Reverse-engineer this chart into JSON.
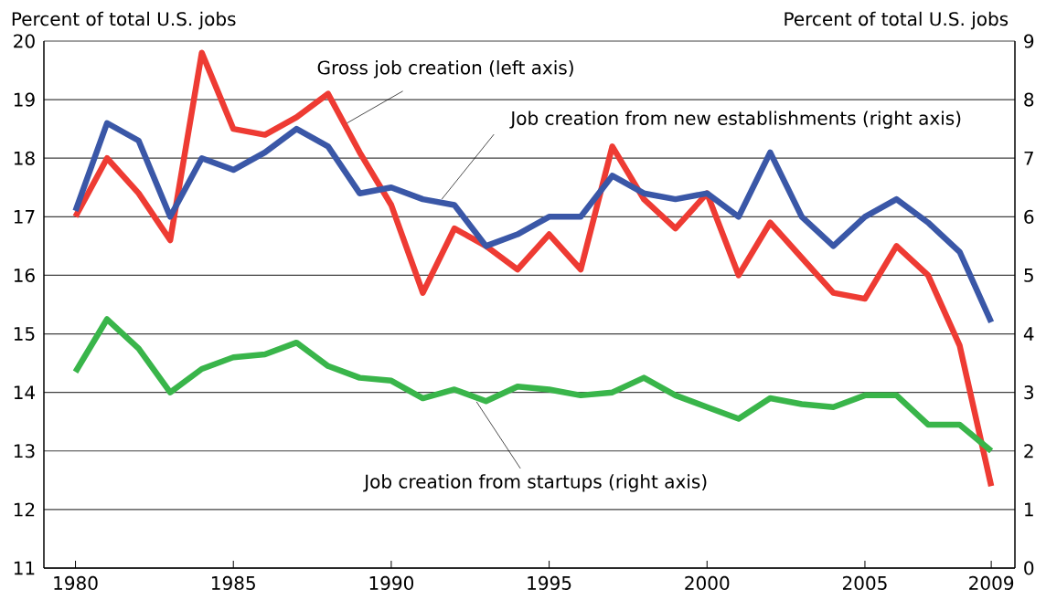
{
  "chart_data": {
    "type": "line",
    "ylabel": "Percent of total U.S. jobs",
    "y2label": "Percent of total U.S. jobs",
    "x": [
      1980,
      1981,
      1982,
      1983,
      1984,
      1985,
      1986,
      1987,
      1988,
      1989,
      1990,
      1991,
      1992,
      1993,
      1994,
      1995,
      1996,
      1997,
      1998,
      1999,
      2000,
      2001,
      2002,
      2003,
      2004,
      2005,
      2006,
      2007,
      2008,
      2009
    ],
    "series": [
      {
        "color": "#ee3b33",
        "values": [
          17.0,
          18.0,
          17.4,
          16.6,
          19.8,
          18.5,
          18.4,
          18.7,
          19.1,
          18.1,
          17.2,
          15.7,
          16.8,
          16.5,
          16.1,
          16.7,
          16.1,
          18.2,
          17.3,
          16.8,
          17.4,
          16.0,
          16.9,
          16.3,
          15.7,
          15.6,
          16.5,
          16.0,
          14.8,
          12.4
        ]
      },
      {
        "color": "#3a57a7",
        "axis": "y2",
        "values": [
          6.1,
          7.6,
          7.3,
          6.0,
          7.0,
          6.8,
          7.1,
          7.5,
          7.2,
          6.4,
          6.5,
          6.3,
          6.2,
          5.5,
          5.7,
          6.0,
          6.0,
          6.7,
          6.4,
          6.3,
          6.4,
          6.0,
          7.1,
          6.0,
          5.5,
          6.0,
          6.3,
          5.9,
          5.4,
          4.2
        ]
      },
      {
        "color": "#39b54a",
        "axis": "y2",
        "values": [
          3.35,
          4.25,
          3.75,
          3.0,
          3.4,
          3.6,
          3.65,
          3.85,
          3.45,
          3.25,
          3.2,
          2.9,
          3.05,
          2.85,
          3.1,
          3.05,
          2.95,
          3.0,
          3.25,
          2.95,
          2.75,
          2.55,
          2.9,
          2.8,
          2.75,
          2.95,
          2.95,
          2.45,
          2.45,
          2.0
        ]
      }
    ],
    "xlim": [
      1979,
      2009.75
    ],
    "xticks": [
      1980,
      1985,
      1990,
      1995,
      2000,
      2005,
      2009
    ],
    "ylim": [
      11,
      20
    ],
    "yticks": [
      11,
      12,
      13,
      14,
      15,
      16,
      17,
      18,
      19,
      20
    ],
    "y2lim": [
      0,
      9
    ],
    "y2ticks": [
      0,
      1,
      2,
      3,
      4,
      5,
      6,
      7,
      8,
      9
    ],
    "grid": "y",
    "annotations": [
      {
        "text": "Gross job creation (left axis)",
        "x": 1988.6,
        "y": 18.6
      },
      {
        "text": "Job creation from new establishments (right axis)",
        "x": 1991.6,
        "y": 17.3
      },
      {
        "text": "Job creation from startups (right axis)",
        "x": 1992.7,
        "y": 13.84
      }
    ]
  }
}
